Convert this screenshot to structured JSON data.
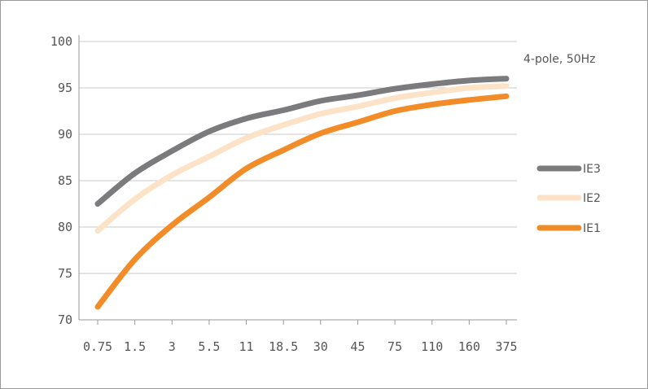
{
  "chart_data": {
    "type": "line",
    "title": "",
    "xlabel": "",
    "ylabel": "",
    "annotation": "4-pole, 50Hz",
    "categories": [
      "0.75",
      "1.5",
      "3",
      "5.5",
      "11",
      "18.5",
      "30",
      "45",
      "75",
      "110",
      "160",
      "375"
    ],
    "ylim": [
      70,
      100
    ],
    "yticks": [
      70,
      75,
      80,
      85,
      90,
      95,
      100
    ],
    "grid": true,
    "legend_position": "right",
    "series": [
      {
        "name": "IE3",
        "color": "#7b7b7d",
        "values": [
          82.5,
          85.8,
          88.2,
          90.3,
          91.7,
          92.6,
          93.6,
          94.2,
          94.9,
          95.4,
          95.8,
          96.0
        ]
      },
      {
        "name": "IE2",
        "color": "#fce3c8",
        "values": [
          79.6,
          83.0,
          85.6,
          87.6,
          89.6,
          91.0,
          92.2,
          93.0,
          93.9,
          94.5,
          95.0,
          95.2
        ]
      },
      {
        "name": "IE1",
        "color": "#f28c28",
        "values": [
          71.4,
          76.5,
          80.2,
          83.2,
          86.3,
          88.3,
          90.1,
          91.3,
          92.5,
          93.2,
          93.7,
          94.1
        ]
      }
    ]
  }
}
